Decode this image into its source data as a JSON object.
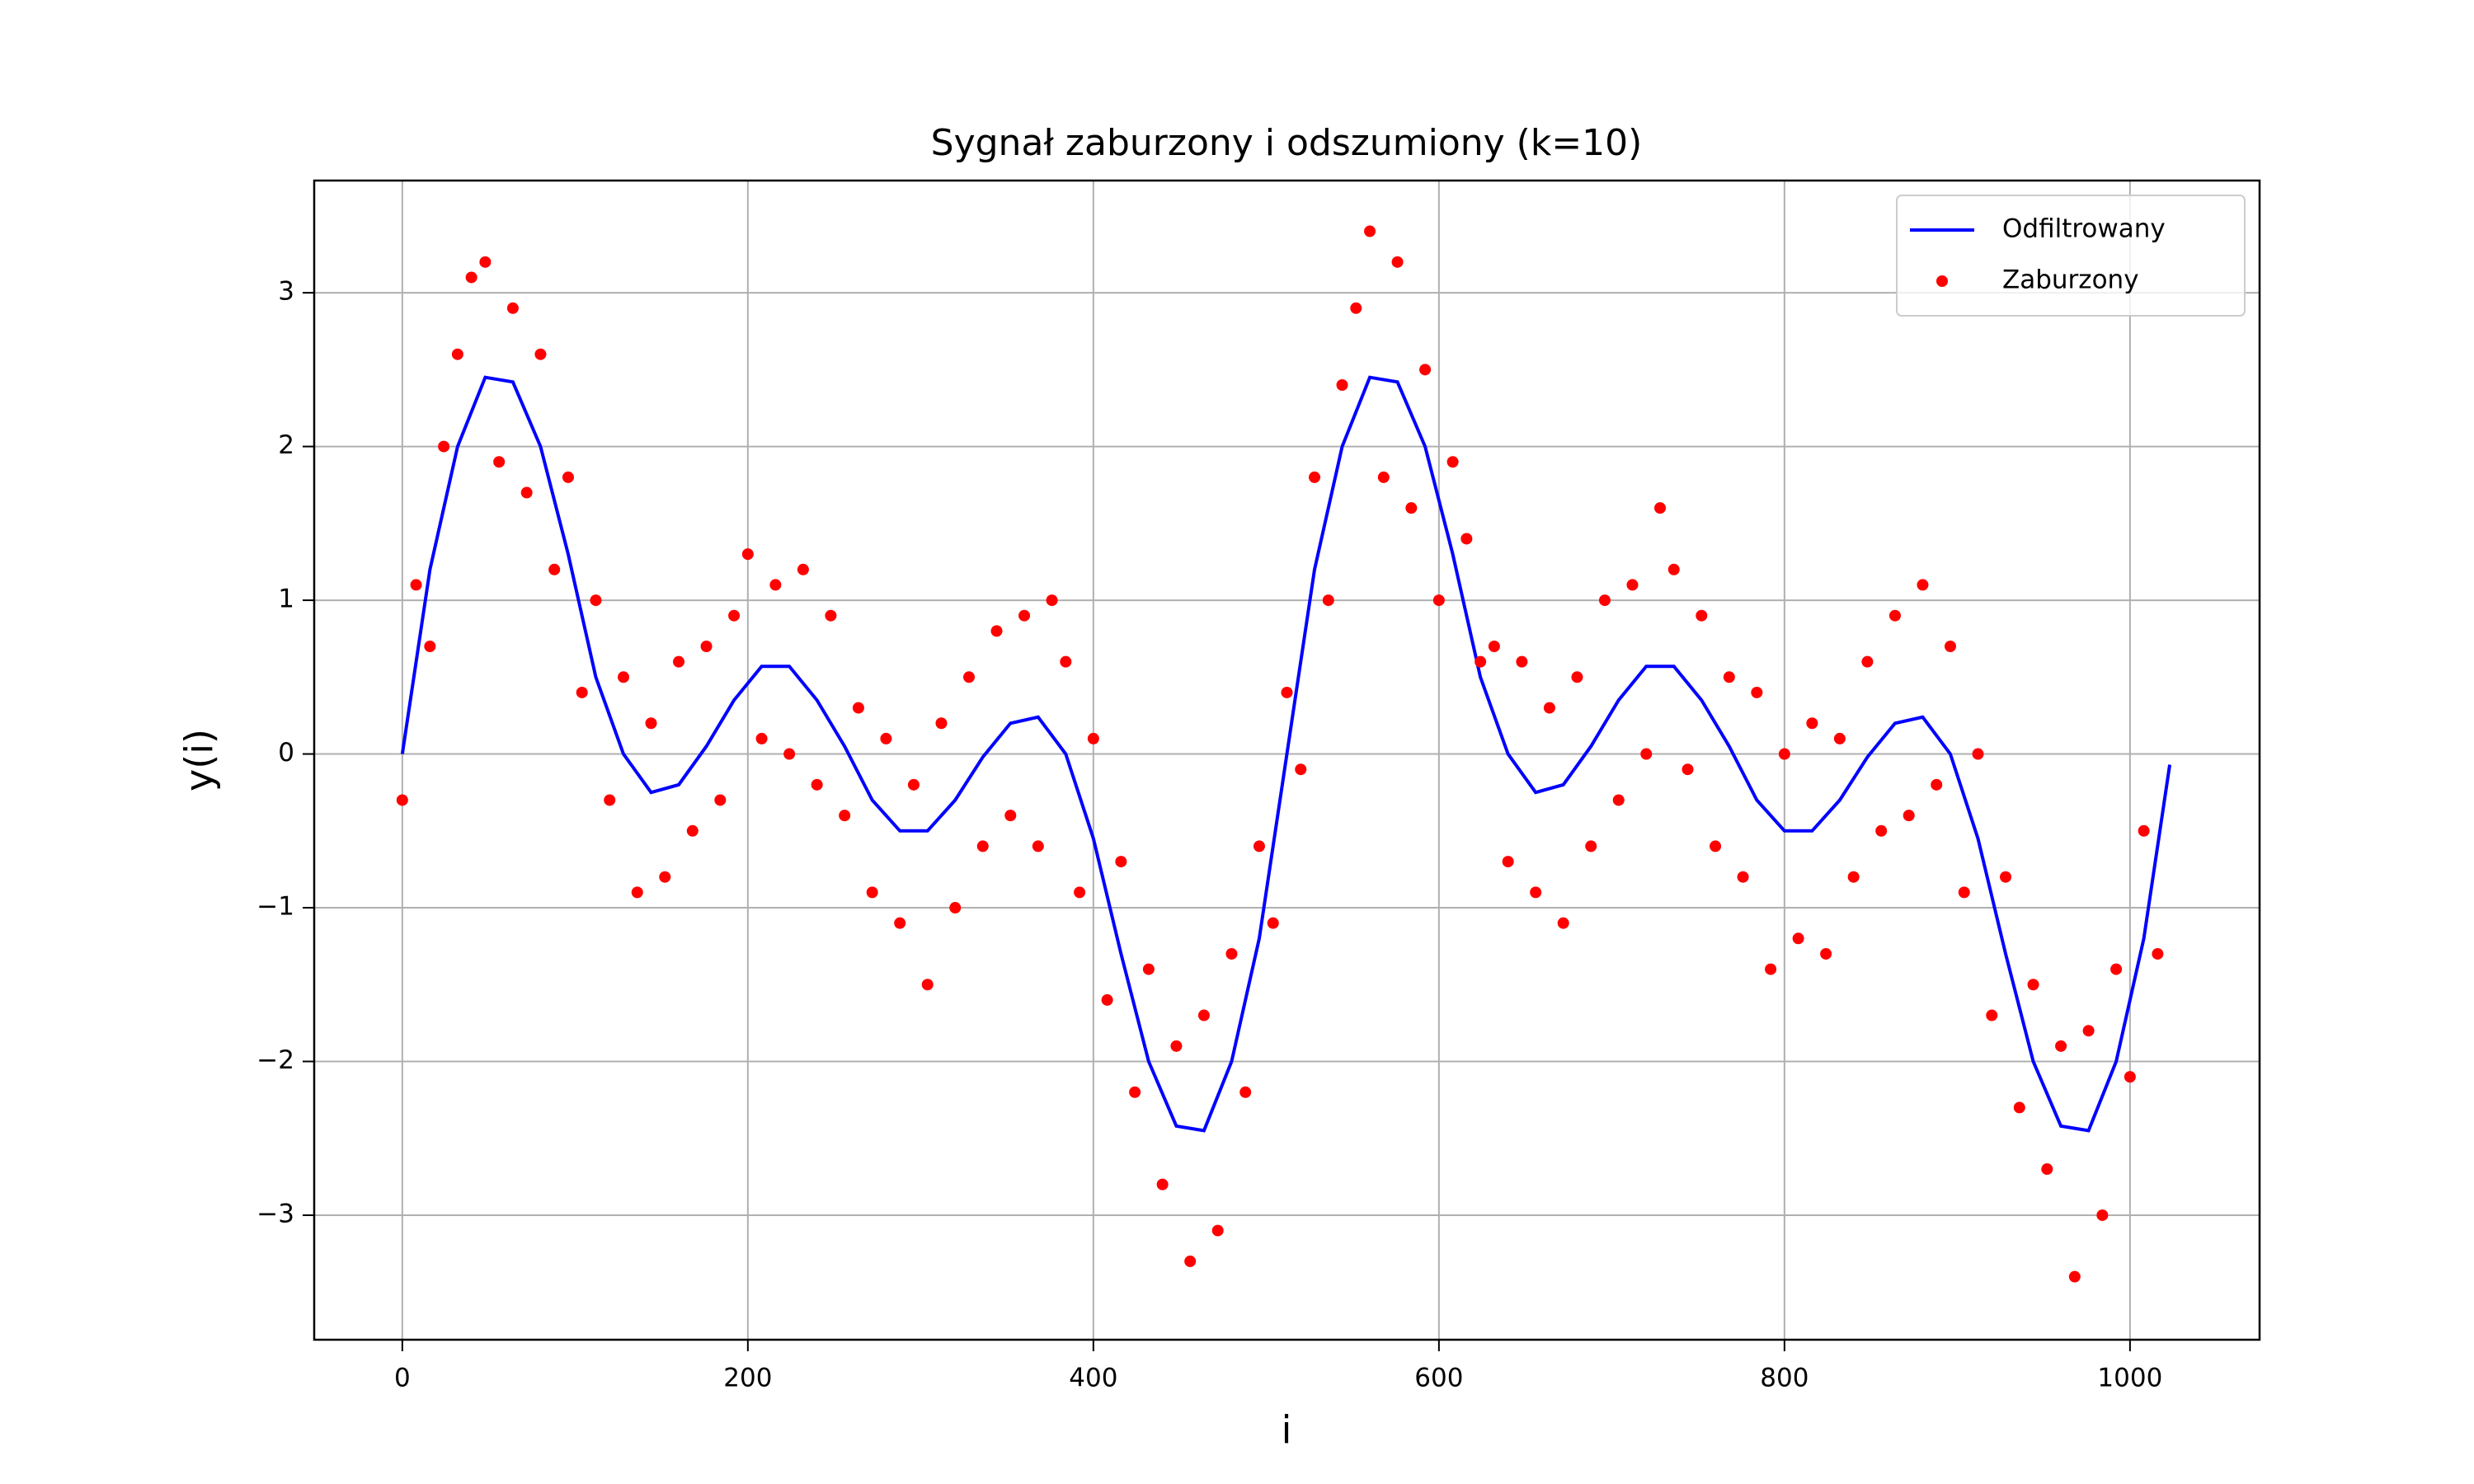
{
  "chart_data": {
    "type": "line",
    "title": "Sygnał zaburzony i odszumiony (k=10)",
    "x_label": "i",
    "y_label": "y(i)",
    "xlim": [
      -51,
      1075
    ],
    "ylim": [
      -3.81,
      3.73
    ],
    "xticks": [
      0,
      200,
      400,
      600,
      800,
      1000
    ],
    "yticks": [
      {
        "value": -3,
        "label": "−3"
      },
      {
        "value": -2,
        "label": "−2"
      },
      {
        "value": -1,
        "label": "−1"
      },
      0,
      1,
      2,
      3
    ],
    "grid": true,
    "legend": "upper right",
    "series": [
      {
        "name": "Odfiltrowany",
        "type": "line",
        "color": "#0000ff",
        "x": [
          0,
          16,
          32,
          48,
          64,
          80,
          96,
          112,
          128,
          144,
          160,
          176,
          192,
          208,
          224,
          240,
          256,
          272,
          288,
          304,
          320,
          336,
          352,
          368,
          384,
          400,
          416,
          432,
          448,
          464,
          480,
          496,
          512,
          528,
          544,
          560,
          576,
          592,
          608,
          624,
          640,
          656,
          672,
          688,
          704,
          720,
          736,
          752,
          768,
          784,
          800,
          816,
          832,
          848,
          864,
          880,
          896,
          912,
          928,
          944,
          960,
          976,
          992,
          1008,
          1023
        ],
        "values": [
          0,
          1.2,
          2.0,
          2.45,
          2.42,
          2.0,
          1.3,
          0.5,
          0.0,
          -0.25,
          -0.2,
          0.05,
          0.35,
          0.57,
          0.57,
          0.35,
          0.05,
          -0.3,
          -0.5,
          -0.5,
          -0.3,
          -0.02,
          0.2,
          0.24,
          0.0,
          -0.55,
          -1.3,
          -2.0,
          -2.42,
          -2.45,
          -2.0,
          -1.2,
          0.0,
          1.2,
          2.0,
          2.45,
          2.42,
          2.0,
          1.3,
          0.5,
          0.0,
          -0.25,
          -0.2,
          0.05,
          0.35,
          0.57,
          0.57,
          0.35,
          0.05,
          -0.3,
          -0.5,
          -0.5,
          -0.3,
          -0.02,
          0.2,
          0.24,
          0.0,
          -0.55,
          -1.3,
          -2.0,
          -2.42,
          -2.45,
          -2.0,
          -1.2,
          -0.07
        ]
      },
      {
        "name": "Zaburzony",
        "type": "scatter",
        "color": "#ff0000",
        "x": [
          0,
          8,
          16,
          24,
          32,
          40,
          48,
          56,
          64,
          72,
          80,
          88,
          96,
          104,
          112,
          120,
          128,
          136,
          144,
          152,
          160,
          168,
          176,
          184,
          192,
          200,
          208,
          216,
          224,
          232,
          240,
          248,
          256,
          264,
          272,
          280,
          288,
          296,
          304,
          312,
          320,
          328,
          336,
          344,
          352,
          360,
          368,
          376,
          384,
          392,
          400,
          408,
          416,
          424,
          432,
          440,
          448,
          456,
          464,
          472,
          480,
          488,
          496,
          504,
          512,
          520,
          528,
          536,
          544,
          552,
          560,
          568,
          576,
          584,
          592,
          600,
          608,
          616,
          624,
          632,
          640,
          648,
          656,
          664,
          672,
          680,
          688,
          696,
          704,
          712,
          720,
          728,
          736,
          744,
          752,
          760,
          768,
          776,
          784,
          792,
          800,
          808,
          816,
          824,
          832,
          840,
          848,
          856,
          864,
          872,
          880,
          888,
          896,
          904,
          912,
          920,
          928,
          936,
          944,
          952,
          960,
          968,
          976,
          984,
          992,
          1000,
          1008,
          1016
        ],
        "values": [
          -0.3,
          1.1,
          0.7,
          2.0,
          2.6,
          3.1,
          3.2,
          1.9,
          2.9,
          1.7,
          2.6,
          1.2,
          1.8,
          0.4,
          1.0,
          -0.3,
          0.5,
          -0.9,
          0.2,
          -0.8,
          0.6,
          -0.5,
          0.7,
          -0.3,
          0.9,
          1.3,
          0.1,
          1.1,
          0.0,
          1.2,
          -0.2,
          0.9,
          -0.4,
          0.3,
          -0.9,
          0.1,
          -1.1,
          -0.2,
          -1.5,
          0.2,
          -1.0,
          0.5,
          -0.6,
          0.8,
          -0.4,
          0.9,
          -0.6,
          1.0,
          0.6,
          -0.9,
          0.1,
          -1.6,
          -0.7,
          -2.2,
          -1.4,
          -2.8,
          -1.9,
          -3.3,
          -1.7,
          -3.1,
          -1.3,
          -2.2,
          -0.6,
          -1.1,
          0.4,
          -0.1,
          1.8,
          1.0,
          2.4,
          2.9,
          3.4,
          1.8,
          3.2,
          1.6,
          2.5,
          1.0,
          1.9,
          1.4,
          0.6,
          0.7,
          -0.7,
          0.6,
          -0.9,
          0.3,
          -1.1,
          0.5,
          -0.6,
          1.0,
          -0.3,
          1.1,
          0.0,
          1.6,
          1.2,
          -0.1,
          0.9,
          -0.6,
          0.5,
          -0.8,
          0.4,
          -1.4,
          0.0,
          -1.2,
          0.2,
          -1.3,
          0.1,
          -0.8,
          0.6,
          -0.5,
          0.9,
          -0.4,
          1.1,
          -0.2,
          0.7,
          -0.9,
          0.0,
          -1.7,
          -0.8,
          -2.3,
          -1.5,
          -2.7,
          -1.9,
          -3.4,
          -1.8,
          -3.0,
          -1.4,
          -2.1,
          -0.5,
          -1.3
        ]
      }
    ]
  }
}
